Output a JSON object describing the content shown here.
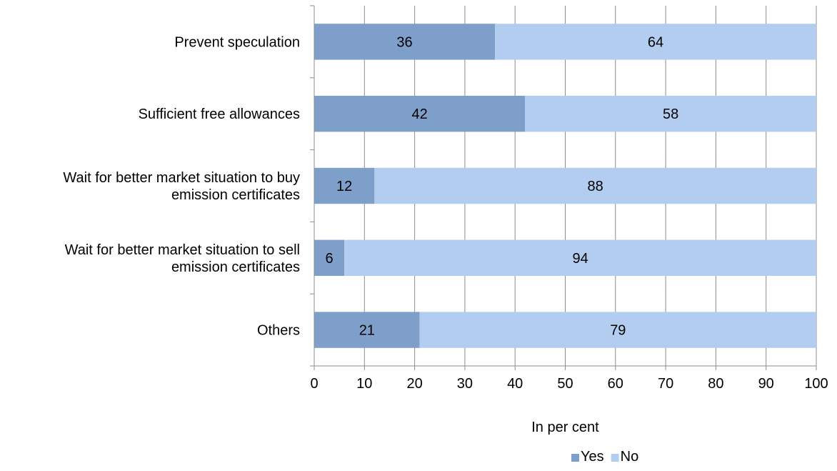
{
  "chart_data": {
    "type": "bar",
    "orientation": "horizontal",
    "stacked": true,
    "categories": [
      [
        "Prevent speculation"
      ],
      [
        "Sufficient free allowances"
      ],
      [
        "Wait for better market situation to buy",
        "emission certificates"
      ],
      [
        "Wait for better market situation to sell",
        "emission certificates"
      ],
      [
        "Others"
      ]
    ],
    "series": [
      {
        "name": "Yes",
        "values": [
          36,
          42,
          12,
          6,
          21
        ],
        "labels": [
          "36",
          "42",
          "12",
          "6",
          "21"
        ],
        "color": "#7f9fcb"
      },
      {
        "name": "No",
        "values": [
          64,
          58,
          88,
          94,
          79
        ],
        "labels": [
          "64",
          "58",
          "88",
          "94",
          "79"
        ],
        "color": "#b3cdf0"
      }
    ],
    "xlim": [
      0,
      100
    ],
    "xticks": [
      0,
      10,
      20,
      30,
      40,
      50,
      60,
      70,
      80,
      90,
      100
    ],
    "xtick_labels": [
      "0",
      "10",
      "20",
      "30",
      "40",
      "50",
      "60",
      "70",
      "80",
      "90",
      "100"
    ],
    "xlabel": "In per cent",
    "title": "",
    "grid": true,
    "legend_position": "bottom"
  }
}
